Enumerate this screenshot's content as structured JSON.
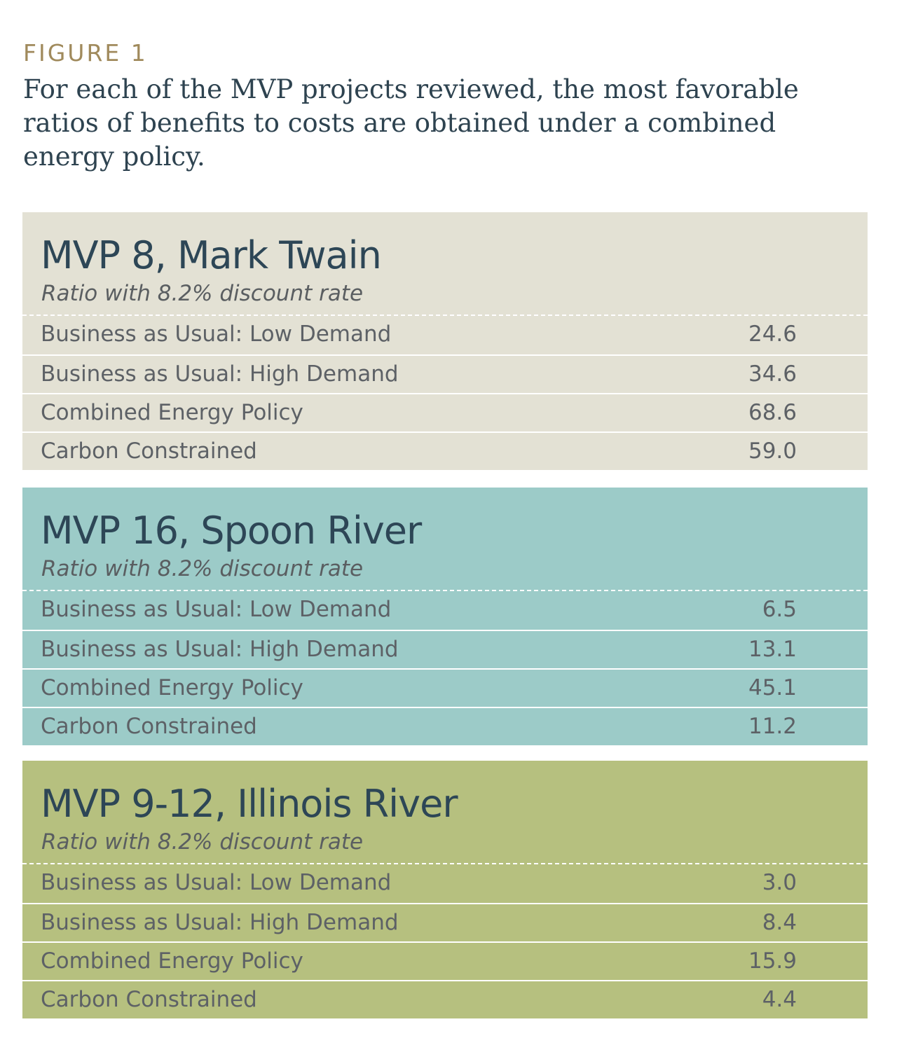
{
  "figure": {
    "label": "FIGURE 1",
    "caption": "For each of the MVP projects reviewed, the most favorable ratios of benefits to costs are obtained under a combined energy policy."
  },
  "colors": {
    "panel_1": "#e3e1d4",
    "panel_2": "#9ccbc8",
    "panel_3": "#b6c07f",
    "title_text": "#2d4656",
    "label_gold": "#a08a5c"
  },
  "chart_data": [
    {
      "type": "table",
      "title": "MVP 8, Mark Twain",
      "subtitle": "Ratio with 8.2% discount rate",
      "categories": [
        "Business as Usual: Low Demand",
        "Business as Usual: High Demand",
        "Combined Energy Policy",
        "Carbon Constrained"
      ],
      "values": [
        "24.6",
        "34.6",
        "68.6",
        "59.0"
      ]
    },
    {
      "type": "table",
      "title": "MVP 16, Spoon River",
      "subtitle": "Ratio with 8.2% discount rate",
      "categories": [
        "Business as Usual: Low Demand",
        "Business as Usual: High Demand",
        "Combined Energy Policy",
        "Carbon Constrained"
      ],
      "values": [
        "6.5",
        "13.1",
        "45.1",
        "11.2"
      ]
    },
    {
      "type": "table",
      "title": "MVP 9-12, Illinois River",
      "subtitle": "Ratio with 8.2% discount rate",
      "categories": [
        "Business as Usual: Low Demand",
        "Business as Usual: High Demand",
        "Combined Energy Policy",
        "Carbon Constrained"
      ],
      "values": [
        "3.0",
        "8.4",
        "15.9",
        "4.4"
      ]
    }
  ]
}
